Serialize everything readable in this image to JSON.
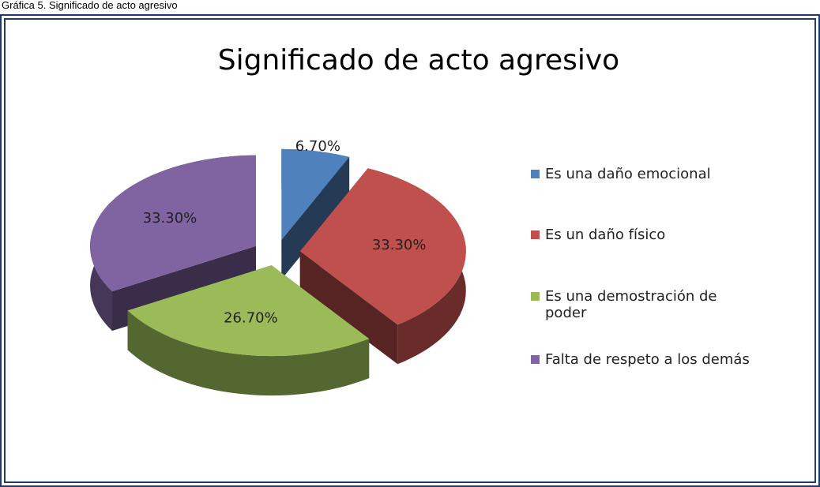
{
  "caption": "Gráfica 5. Significado de acto agresivo",
  "chart_data": {
    "type": "pie3d",
    "title": "Significado de acto agresivo",
    "categories": [
      "Es una daño emocional",
      "Es un daño físico",
      "Es una demostración de poder",
      "Falta de respeto a los demás"
    ],
    "values": [
      6.7,
      33.3,
      26.7,
      33.3
    ],
    "value_labels": [
      "6.70%",
      "33.30%",
      "26.70%",
      "33.30%"
    ],
    "colors": [
      "#4f81bd",
      "#c0504d",
      "#9bbb59",
      "#8064a2"
    ],
    "legend": "right"
  }
}
